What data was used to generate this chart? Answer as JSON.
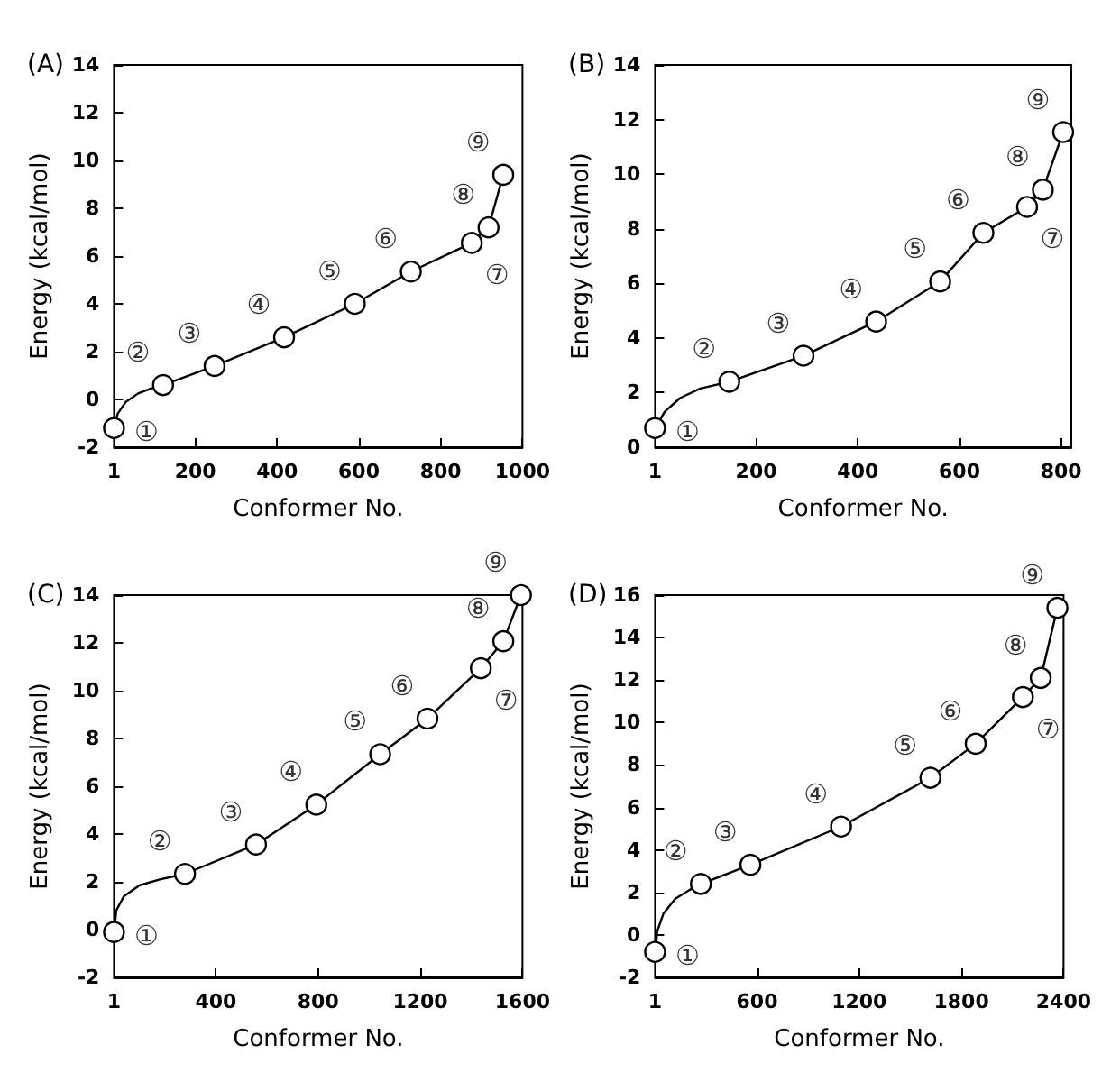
{
  "chart_data": [
    {
      "type": "line",
      "title": "(A)",
      "xlabel": "Conformer No.",
      "ylabel": "Energy (kcal/mol)",
      "xlim": [
        1,
        1000
      ],
      "xticks": [
        1,
        200,
        400,
        600,
        800,
        1000
      ],
      "ylim": [
        -2,
        14
      ],
      "yticks": [
        -2,
        0,
        2,
        4,
        6,
        8,
        10,
        12,
        14
      ],
      "grid": false,
      "series": [
        {
          "color": "#000000",
          "marker": "none",
          "x": [
            1,
            10,
            30,
            60,
            90,
            121,
            247,
            417,
            590,
            727,
            876,
            917,
            953
          ],
          "values": [
            -1.2,
            -0.6,
            -0.1,
            0.25,
            0.45,
            0.6,
            1.4,
            2.6,
            4.0,
            5.35,
            6.55,
            7.2,
            9.4
          ]
        },
        {
          "type": "scatter",
          "color": "#000000",
          "marker": "circle",
          "x": [
            1,
            121,
            247,
            417,
            590,
            727,
            876,
            917,
            953
          ],
          "values": [
            -1.2,
            0.6,
            1.4,
            2.6,
            4.0,
            5.35,
            6.55,
            7.2,
            9.4
          ]
        }
      ],
      "annotations": [
        {
          "text": "①",
          "x": 1,
          "y": -1.2
        },
        {
          "text": "②",
          "x": 121,
          "y": 0.6
        },
        {
          "text": "③",
          "x": 247,
          "y": 1.4
        },
        {
          "text": "④",
          "x": 417,
          "y": 2.6
        },
        {
          "text": "⑤",
          "x": 590,
          "y": 4.0
        },
        {
          "text": "⑥",
          "x": 727,
          "y": 5.35
        },
        {
          "text": "⑦",
          "x": 876,
          "y": 6.55
        },
        {
          "text": "⑧",
          "x": 917,
          "y": 7.2
        },
        {
          "text": "⑨",
          "x": 953,
          "y": 9.4
        }
      ]
    },
    {
      "type": "line",
      "title": "(B)",
      "xlabel": "Conformer No.",
      "ylabel": "Energy (kcal/mol)",
      "xlim": [
        1,
        820
      ],
      "xticks": [
        1,
        200,
        400,
        600,
        800
      ],
      "ylim": [
        0,
        14
      ],
      "yticks": [
        0,
        2,
        4,
        6,
        8,
        10,
        12,
        14
      ],
      "grid": false,
      "series": [
        {
          "color": "#000000",
          "marker": "none",
          "x": [
            1,
            20,
            50,
            90,
            147,
            293,
            436,
            562,
            647,
            733,
            764,
            804
          ],
          "values": [
            0.7,
            1.3,
            1.8,
            2.15,
            2.4,
            3.35,
            4.6,
            6.07,
            7.85,
            8.8,
            9.43,
            11.54
          ]
        },
        {
          "type": "scatter",
          "color": "#000000",
          "marker": "circle",
          "x": [
            1,
            147,
            293,
            436,
            562,
            647,
            733,
            764,
            804
          ],
          "values": [
            0.7,
            2.4,
            3.35,
            4.6,
            6.07,
            7.85,
            8.8,
            9.43,
            11.54
          ]
        }
      ],
      "annotations": [
        {
          "text": "①",
          "x": 1,
          "y": 0.7
        },
        {
          "text": "②",
          "x": 147,
          "y": 2.4
        },
        {
          "text": "③",
          "x": 293,
          "y": 3.35
        },
        {
          "text": "④",
          "x": 436,
          "y": 4.6
        },
        {
          "text": "⑤",
          "x": 562,
          "y": 6.07
        },
        {
          "text": "⑥",
          "x": 647,
          "y": 7.85
        },
        {
          "text": "⑦",
          "x": 733,
          "y": 8.8
        },
        {
          "text": "⑧",
          "x": 764,
          "y": 9.43
        },
        {
          "text": "⑨",
          "x": 804,
          "y": 11.54
        }
      ]
    },
    {
      "type": "line",
      "title": "(C)",
      "xlabel": "Conformer No.",
      "ylabel": "Energy (kcal/mol)",
      "xlim": [
        1,
        1600
      ],
      "xticks": [
        1,
        400,
        800,
        1200,
        1600
      ],
      "ylim": [
        -2,
        14
      ],
      "yticks": [
        -2,
        0,
        2,
        4,
        6,
        8,
        10,
        12,
        14
      ],
      "grid": false,
      "series": [
        {
          "color": "#000000",
          "marker": "none",
          "x": [
            1,
            10,
            40,
            100,
            180,
            279,
            557,
            793,
            1043,
            1228,
            1437,
            1525,
            1594
          ],
          "values": [
            -0.1,
            0.8,
            1.4,
            1.85,
            2.1,
            2.33,
            3.56,
            5.23,
            7.34,
            8.83,
            10.94,
            12.07,
            14
          ]
        },
        {
          "type": "scatter",
          "color": "#000000",
          "marker": "circle",
          "x": [
            1,
            279,
            557,
            793,
            1043,
            1228,
            1437,
            1525,
            1594
          ],
          "values": [
            -0.1,
            2.33,
            3.56,
            5.23,
            7.34,
            8.83,
            10.94,
            12.07,
            14
          ]
        }
      ],
      "annotations": [
        {
          "text": "①",
          "x": 1,
          "y": -0.1
        },
        {
          "text": "②",
          "x": 279,
          "y": 2.33
        },
        {
          "text": "③",
          "x": 557,
          "y": 3.56
        },
        {
          "text": "④",
          "x": 793,
          "y": 5.23
        },
        {
          "text": "⑤",
          "x": 1043,
          "y": 7.34
        },
        {
          "text": "⑥",
          "x": 1228,
          "y": 8.83
        },
        {
          "text": "⑦",
          "x": 1437,
          "y": 10.94
        },
        {
          "text": "⑧",
          "x": 1525,
          "y": 12.07
        },
        {
          "text": "⑨",
          "x": 1594,
          "y": 14
        }
      ]
    },
    {
      "type": "line",
      "title": "(D)",
      "xlabel": "Conformer No.",
      "ylabel": "Energy (kcal/mol)",
      "xlim": [
        1,
        2400
      ],
      "xticks": [
        1,
        600,
        1200,
        1800,
        2400
      ],
      "ylim": [
        -2,
        16
      ],
      "yticks": [
        -2,
        0,
        2,
        4,
        6,
        8,
        10,
        12,
        14,
        16
      ],
      "grid": false,
      "series": [
        {
          "color": "#000000",
          "marker": "none",
          "x": [
            1,
            15,
            50,
            120,
            200,
            270,
            561,
            1093,
            1618,
            1884,
            2161,
            2266,
            2364
          ],
          "values": [
            -0.8,
            0.2,
            1.0,
            1.7,
            2.1,
            2.4,
            3.3,
            5.1,
            7.4,
            9.0,
            11.2,
            12.1,
            15.4
          ]
        },
        {
          "type": "scatter",
          "color": "#000000",
          "marker": "circle",
          "x": [
            1,
            270,
            561,
            1093,
            1618,
            1884,
            2161,
            2266,
            2364
          ],
          "values": [
            -0.8,
            2.4,
            3.3,
            5.1,
            7.4,
            9.0,
            11.2,
            12.1,
            15.4
          ]
        }
      ],
      "annotations": [
        {
          "text": "①",
          "x": 1,
          "y": -0.8
        },
        {
          "text": "②",
          "x": 270,
          "y": 2.4
        },
        {
          "text": "③",
          "x": 561,
          "y": 3.3
        },
        {
          "text": "④",
          "x": 1093,
          "y": 5.1
        },
        {
          "text": "⑤",
          "x": 1618,
          "y": 7.4
        },
        {
          "text": "⑥",
          "x": 1884,
          "y": 9.0
        },
        {
          "text": "⑦",
          "x": 2161,
          "y": 11.2
        },
        {
          "text": "⑧",
          "x": 2266,
          "y": 12.1
        },
        {
          "text": "⑨",
          "x": 2364,
          "y": 15.4
        }
      ]
    }
  ]
}
